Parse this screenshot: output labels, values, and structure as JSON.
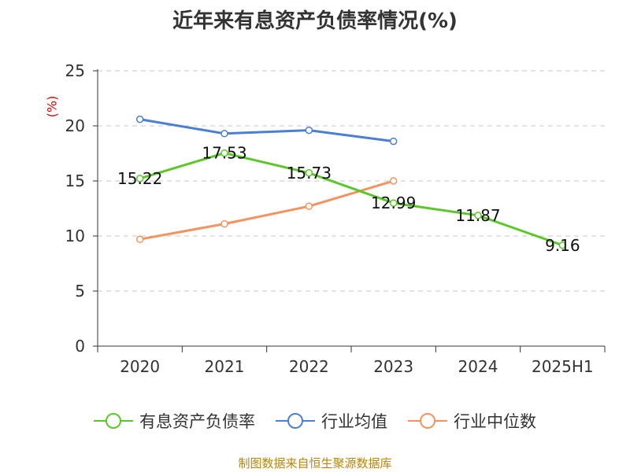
{
  "chart_data": {
    "type": "line",
    "title": "近年来有息资产负债率情况(%)",
    "ylabel": "(%)",
    "categories": [
      "2020",
      "2021",
      "2022",
      "2023",
      "2024",
      "2025H1"
    ],
    "ylim": [
      0,
      25
    ],
    "yticks": [
      0,
      5,
      10,
      15,
      20,
      25
    ],
    "grid": true,
    "legend_position": "bottom",
    "series": [
      {
        "name": "有息资产负债率",
        "color": "#5bc72b",
        "values": [
          15.22,
          17.53,
          15.73,
          12.99,
          11.87,
          9.16
        ],
        "labels": [
          "15.22",
          "17.53",
          "15.73",
          "12.99",
          "11.87",
          "9.16"
        ]
      },
      {
        "name": "行业均值",
        "color": "#4a7fd6",
        "values": [
          20.6,
          19.3,
          19.6,
          18.6,
          null,
          null
        ]
      },
      {
        "name": "行业中位数",
        "color": "#f4935f",
        "values": [
          9.7,
          11.1,
          12.7,
          15.0,
          null,
          null
        ]
      }
    ]
  },
  "footer": {
    "source": "制图数据来自恒生聚源数据库"
  }
}
